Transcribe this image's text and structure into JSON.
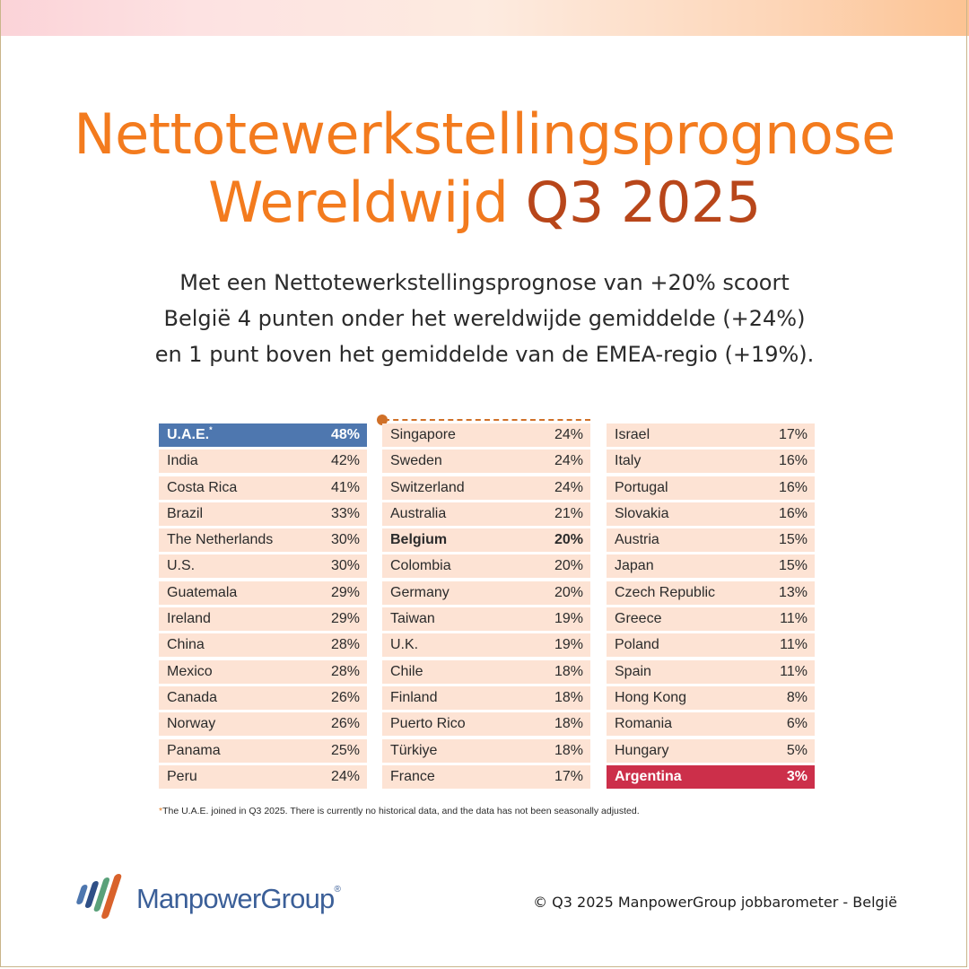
{
  "title_line1": "Nettotewerkstellingsprognose",
  "title_line2_main": "Wereldwijd",
  "title_line2_accent": "Q3 2025",
  "subtitle_lines": [
    "Met een Nettotewerkstellingsprognose van +20% scoort",
    "België 4 punten onder het wereldwijde gemiddelde (+24%)",
    "en 1 punt boven het gemiddelde van de EMEA-regio (+19%)."
  ],
  "table": {
    "col1": [
      {
        "country": "U.A.E.",
        "value": "48%"
      },
      {
        "country": "India",
        "value": "42%"
      },
      {
        "country": "Costa Rica",
        "value": "41%"
      },
      {
        "country": "Brazil",
        "value": "33%"
      },
      {
        "country": "The Netherlands",
        "value": "30%"
      },
      {
        "country": "U.S.",
        "value": "30%"
      },
      {
        "country": "Guatemala",
        "value": "29%"
      },
      {
        "country": "Ireland",
        "value": "29%"
      },
      {
        "country": "China",
        "value": "28%"
      },
      {
        "country": "Mexico",
        "value": "28%"
      },
      {
        "country": "Canada",
        "value": "26%"
      },
      {
        "country": "Norway",
        "value": "26%"
      },
      {
        "country": "Panama",
        "value": "25%"
      },
      {
        "country": "Peru",
        "value": "24%"
      }
    ],
    "col2": [
      {
        "country": "Singapore",
        "value": "24%"
      },
      {
        "country": "Sweden",
        "value": "24%"
      },
      {
        "country": "Switzerland",
        "value": "24%"
      },
      {
        "country": "Australia",
        "value": "21%"
      },
      {
        "country": "Belgium",
        "value": "20%"
      },
      {
        "country": "Colombia",
        "value": "20%"
      },
      {
        "country": "Germany",
        "value": "20%"
      },
      {
        "country": "Taiwan",
        "value": "19%"
      },
      {
        "country": "U.K.",
        "value": "19%"
      },
      {
        "country": "Chile",
        "value": "18%"
      },
      {
        "country": "Finland",
        "value": "18%"
      },
      {
        "country": "Puerto Rico",
        "value": "18%"
      },
      {
        "country": "Türkiye",
        "value": "18%"
      },
      {
        "country": "France",
        "value": "17%"
      }
    ],
    "col3": [
      {
        "country": "Israel",
        "value": "17%"
      },
      {
        "country": "Italy",
        "value": "16%"
      },
      {
        "country": "Portugal",
        "value": "16%"
      },
      {
        "country": "Slovakia",
        "value": "16%"
      },
      {
        "country": "Austria",
        "value": "15%"
      },
      {
        "country": "Japan",
        "value": "15%"
      },
      {
        "country": "Czech Republic",
        "value": "13%"
      },
      {
        "country": "Greece",
        "value": "11%"
      },
      {
        "country": "Poland",
        "value": "11%"
      },
      {
        "country": "Spain",
        "value": "11%"
      },
      {
        "country": "Hong Kong",
        "value": "8%"
      },
      {
        "country": "Romania",
        "value": "6%"
      },
      {
        "country": "Hungary",
        "value": "5%"
      },
      {
        "country": "Argentina",
        "value": "3%"
      }
    ],
    "uae_marker": "*"
  },
  "footnote_star": "*",
  "footnote": "The U.A.E. joined in Q3 2025. There is currently no historical data, and the data has not been seasonally adjusted.",
  "logo_text": "ManpowerGroup",
  "logo_reg": "®",
  "copyright": "© Q3 2025 ManpowerGroup jobbarometer - België",
  "colors": {
    "title_orange": "#f37b1e",
    "title_accent": "#b8461a",
    "row_bg": "#fde3d4",
    "highlight_top": "#4e77af",
    "highlight_bottom": "#cc2f4a",
    "logo_blue": "#3b5f98"
  }
}
